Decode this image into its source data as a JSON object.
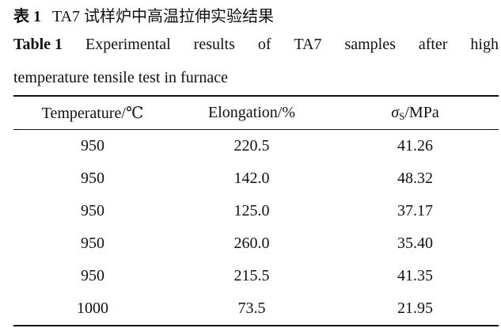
{
  "caption": {
    "cn_label": "表 1",
    "cn_title": "TA7 试样炉中高温拉伸实验结果",
    "en_label": "Table 1",
    "en_title_words": [
      "Experimental",
      "results",
      "of",
      "TA7",
      "samples",
      "after",
      "high"
    ],
    "en_title_line2": "temperature tensile test in furnace"
  },
  "table": {
    "headers": [
      "Temperature/℃",
      "Elongation/%"
    ],
    "stress_header": {
      "symbol": "σ",
      "subscript": "S",
      "unit": "/MPa"
    },
    "rows": [
      [
        "950",
        "220.5",
        "41.26"
      ],
      [
        "950",
        "142.0",
        "48.32"
      ],
      [
        "950",
        "125.0",
        "37.17"
      ],
      [
        "950",
        "260.0",
        "35.40"
      ],
      [
        "950",
        "215.5",
        "41.35"
      ],
      [
        "1000",
        "73.5",
        "21.95"
      ]
    ]
  }
}
